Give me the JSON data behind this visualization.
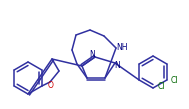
{
  "bg_color": "#ffffff",
  "line_color": "#3030a0",
  "line_width": 1.1,
  "figsize": [
    1.89,
    1.09
  ],
  "dpi": 100,
  "NH_label": "NH",
  "Cl1_label": "Cl",
  "Cl2_label": "Cl",
  "N_label": "N",
  "O_label": "O",
  "O_color": "#cc0000",
  "N_color": "#000080",
  "Cl_color": "#006600",
  "text_fs": 5.5
}
